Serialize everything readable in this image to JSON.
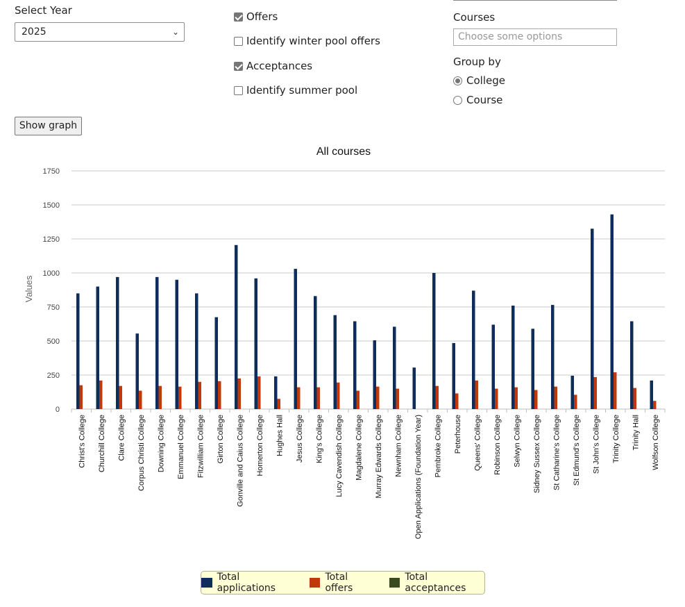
{
  "filters": {
    "year_label": "Select Year",
    "year_value": "2025",
    "offers_label": "Offers",
    "winter_pool_label": "Identify winter pool offers",
    "acceptances_label": "Acceptances",
    "summer_pool_label": "Identify summer pool",
    "courses_label": "Courses",
    "courses_placeholder": "Choose some options",
    "group_by_label": "Group by",
    "group_options": [
      "College",
      "Course"
    ],
    "group_selected": "College",
    "show_graph_label": "Show graph"
  },
  "colors": {
    "applications": "#0f2d5a",
    "offers": "#c0390d",
    "acceptances": "#3b4a1f",
    "grid": "#c8c8c8",
    "axis_text": "#444444"
  },
  "chart_data": {
    "type": "bar",
    "title": "All courses",
    "ylabel": "Values",
    "xlabel": "",
    "ylim": [
      0,
      1750
    ],
    "yticks": [
      0,
      250,
      500,
      750,
      1000,
      1250,
      1500,
      1750
    ],
    "grid": true,
    "legend_position": "bottom",
    "categories": [
      "Christ's College",
      "Churchill College",
      "Clare College",
      "Corpus Christi College",
      "Downing College",
      "Emmanuel College",
      "Fitzwilliam College",
      "Girton College",
      "Gonville and Caius College",
      "Homerton College",
      "Hughes Hall",
      "Jesus College",
      "King's College",
      "Lucy Cavendish College",
      "Magdalene College",
      "Murray Edwards College",
      "Newnham College",
      "Open Applications (Foundation Year)",
      "Pembroke College",
      "Peterhouse",
      "Queens' College",
      "Robinson College",
      "Selwyn College",
      "Sidney Sussex College",
      "St Catharine's College",
      "St Edmund's College",
      "St John's College",
      "Trinity College",
      "Trinity Hall",
      "Wolfson College"
    ],
    "series": [
      {
        "name": "Total applications",
        "values": [
          850,
          900,
          970,
          555,
          970,
          950,
          850,
          675,
          1205,
          960,
          240,
          1030,
          830,
          690,
          645,
          505,
          605,
          305,
          1000,
          485,
          870,
          620,
          760,
          590,
          765,
          245,
          1325,
          1430,
          645,
          210
        ]
      },
      {
        "name": "Total offers",
        "values": [
          175,
          210,
          170,
          135,
          170,
          165,
          200,
          205,
          225,
          240,
          75,
          160,
          160,
          195,
          135,
          165,
          150,
          0,
          170,
          115,
          210,
          150,
          160,
          140,
          165,
          105,
          235,
          270,
          155,
          60
        ]
      },
      {
        "name": "Total acceptances",
        "values": [
          0,
          0,
          0,
          0,
          0,
          0,
          0,
          0,
          0,
          0,
          0,
          0,
          0,
          0,
          0,
          0,
          0,
          0,
          0,
          0,
          0,
          0,
          0,
          0,
          0,
          0,
          0,
          0,
          0,
          0
        ]
      }
    ]
  }
}
